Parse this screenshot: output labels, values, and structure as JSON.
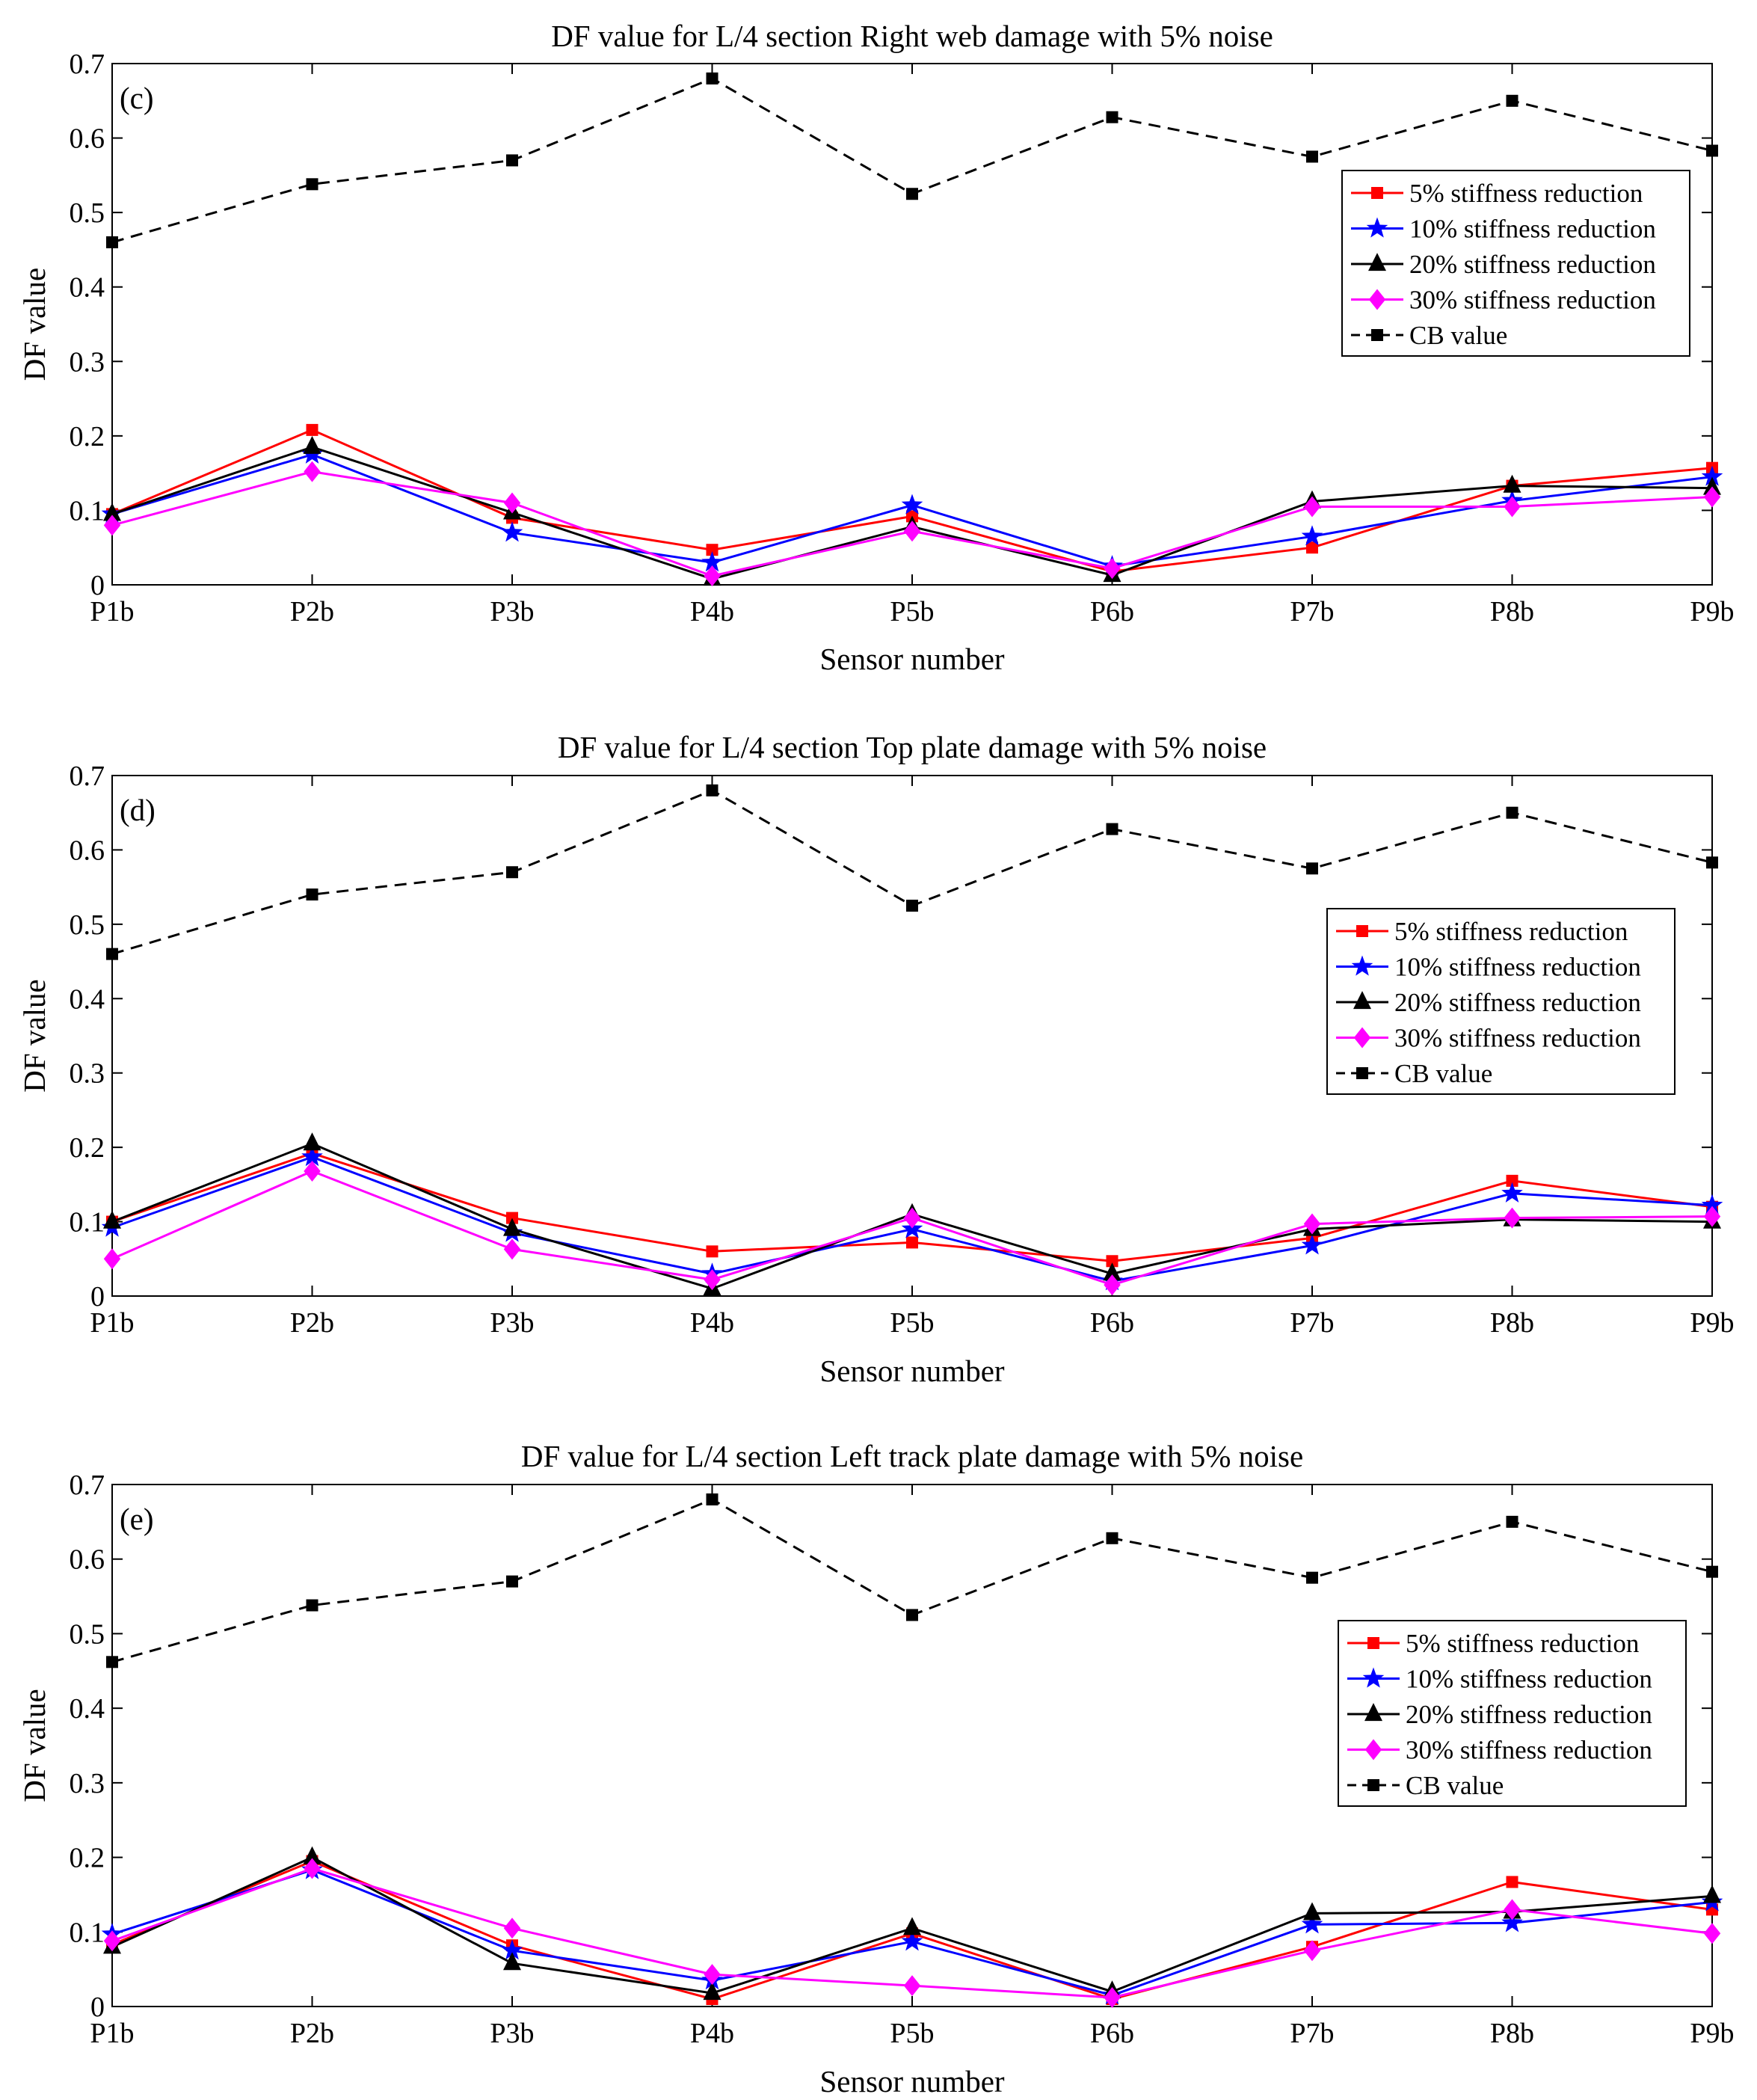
{
  "chart_data": [
    {
      "type": "line",
      "panel_label": "(c)",
      "title": "DF value  for L/4 section Right web damage with 5% noise",
      "xlabel": "Sensor number",
      "ylabel": "DF value",
      "categories": [
        "P1b",
        "P2b",
        "P3b",
        "P4b",
        "P5b",
        "P6b",
        "P7b",
        "P8b",
        "P9b"
      ],
      "ylim": [
        0,
        0.7
      ],
      "yticks": [
        "0",
        "0.1",
        "0.2",
        "0.3",
        "0.4",
        "0.5",
        "0.6",
        "0.7"
      ],
      "legend_position": "right",
      "grid": false,
      "series": [
        {
          "name": "5% stiffness reduction",
          "color": "#ff0000",
          "marker": "square",
          "dashed": false,
          "values": [
            0.095,
            0.208,
            0.09,
            0.047,
            0.092,
            0.018,
            0.05,
            0.133,
            0.157
          ]
        },
        {
          "name": "10% stiffness reduction",
          "color": "#0000ff",
          "marker": "star",
          "dashed": false,
          "values": [
            0.095,
            0.175,
            0.07,
            0.03,
            0.107,
            0.025,
            0.065,
            0.113,
            0.145
          ]
        },
        {
          "name": "20% stiffness reduction",
          "color": "#000000",
          "marker": "triangle",
          "dashed": false,
          "values": [
            0.095,
            0.185,
            0.097,
            0.008,
            0.078,
            0.013,
            0.112,
            0.133,
            0.13
          ]
        },
        {
          "name": "30% stiffness reduction",
          "color": "#ff00ff",
          "marker": "diamond",
          "dashed": false,
          "values": [
            0.08,
            0.152,
            0.11,
            0.012,
            0.072,
            0.022,
            0.105,
            0.105,
            0.118
          ]
        },
        {
          "name": "CB value",
          "color": "#000000",
          "marker": "square",
          "dashed": true,
          "values": [
            0.46,
            0.538,
            0.57,
            0.68,
            0.525,
            0.628,
            0.575,
            0.65,
            0.583
          ]
        }
      ]
    },
    {
      "type": "line",
      "panel_label": "(d)",
      "title": "DF value  for L/4 section Top plate damage with 5% noise",
      "xlabel": "Sensor number",
      "ylabel": "DF value",
      "categories": [
        "P1b",
        "P2b",
        "P3b",
        "P4b",
        "P5b",
        "P6b",
        "P7b",
        "P8b",
        "P9b"
      ],
      "ylim": [
        0,
        0.7
      ],
      "yticks": [
        "0",
        "0.1",
        "0.2",
        "0.3",
        "0.4",
        "0.5",
        "0.6",
        "0.7"
      ],
      "legend_position": "right",
      "grid": false,
      "series": [
        {
          "name": "5% stiffness reduction",
          "color": "#ff0000",
          "marker": "square",
          "dashed": false,
          "values": [
            0.1,
            0.192,
            0.105,
            0.06,
            0.072,
            0.047,
            0.078,
            0.155,
            0.12
          ]
        },
        {
          "name": "10% stiffness reduction",
          "color": "#0000ff",
          "marker": "star",
          "dashed": false,
          "values": [
            0.092,
            0.187,
            0.085,
            0.03,
            0.09,
            0.02,
            0.068,
            0.138,
            0.122
          ]
        },
        {
          "name": "20% stiffness reduction",
          "color": "#000000",
          "marker": "triangle",
          "dashed": false,
          "values": [
            0.1,
            0.205,
            0.09,
            0.01,
            0.11,
            0.03,
            0.09,
            0.103,
            0.1
          ]
        },
        {
          "name": "30% stiffness reduction",
          "color": "#ff00ff",
          "marker": "diamond",
          "dashed": false,
          "values": [
            0.05,
            0.168,
            0.063,
            0.022,
            0.105,
            0.015,
            0.097,
            0.105,
            0.107
          ]
        },
        {
          "name": "CB value",
          "color": "#000000",
          "marker": "square",
          "dashed": true,
          "values": [
            0.46,
            0.54,
            0.57,
            0.68,
            0.525,
            0.628,
            0.575,
            0.65,
            0.583
          ]
        }
      ]
    },
    {
      "type": "line",
      "panel_label": "(e)",
      "title": "DF value  for L/4 section Left track plate damage with 5% noise",
      "xlabel": "Sensor number",
      "ylabel": "DF value",
      "categories": [
        "P1b",
        "P2b",
        "P3b",
        "P4b",
        "P5b",
        "P6b",
        "P7b",
        "P8b",
        "P9b"
      ],
      "ylim": [
        0,
        0.7
      ],
      "yticks": [
        "0",
        "0.1",
        "0.2",
        "0.3",
        "0.4",
        "0.5",
        "0.6",
        "0.7"
      ],
      "legend_position": "right",
      "grid": false,
      "series": [
        {
          "name": "5% stiffness reduction",
          "color": "#ff0000",
          "marker": "square",
          "dashed": false,
          "values": [
            0.083,
            0.195,
            0.082,
            0.01,
            0.098,
            0.01,
            0.08,
            0.167,
            0.13
          ]
        },
        {
          "name": "10% stiffness reduction",
          "color": "#0000ff",
          "marker": "star",
          "dashed": false,
          "values": [
            0.097,
            0.183,
            0.075,
            0.035,
            0.087,
            0.015,
            0.11,
            0.112,
            0.14
          ]
        },
        {
          "name": "20% stiffness reduction",
          "color": "#000000",
          "marker": "triangle",
          "dashed": false,
          "values": [
            0.08,
            0.2,
            0.058,
            0.018,
            0.105,
            0.02,
            0.125,
            0.127,
            0.148
          ]
        },
        {
          "name": "30% stiffness reduction",
          "color": "#ff00ff",
          "marker": "diamond",
          "dashed": false,
          "values": [
            0.088,
            0.185,
            0.105,
            0.043,
            0.028,
            0.012,
            0.075,
            0.13,
            0.098
          ]
        },
        {
          "name": "CB value",
          "color": "#000000",
          "marker": "square",
          "dashed": true,
          "values": [
            0.462,
            0.538,
            0.57,
            0.68,
            0.525,
            0.628,
            0.575,
            0.65,
            0.583
          ]
        }
      ]
    }
  ]
}
